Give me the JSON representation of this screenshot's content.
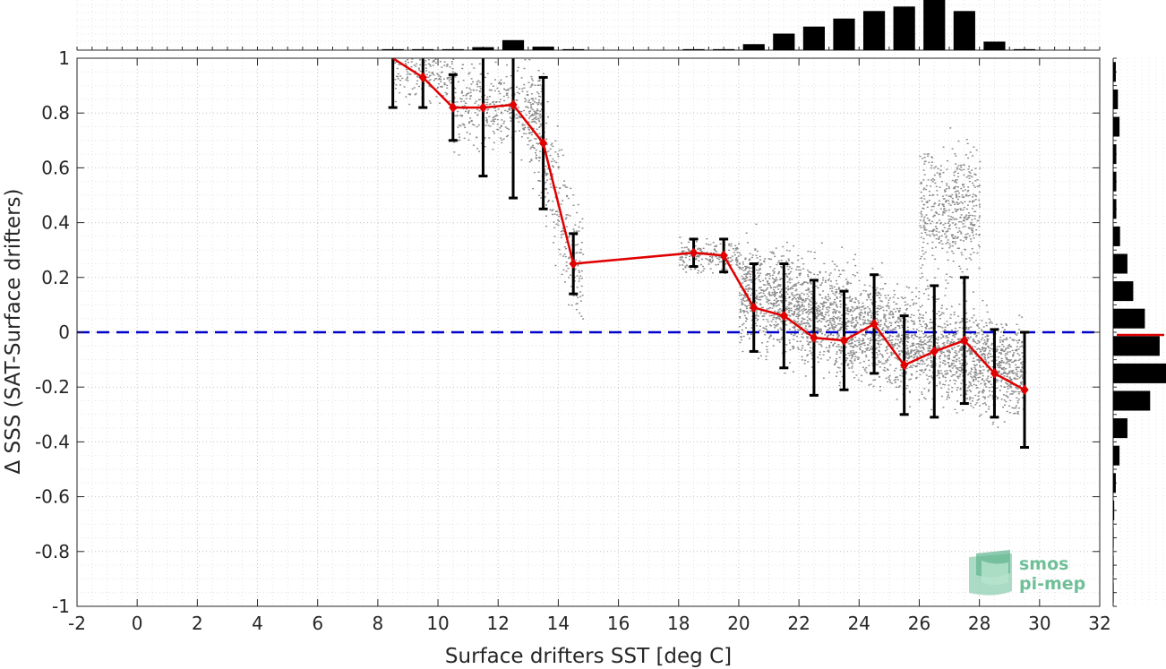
{
  "chart_data": {
    "type": "scatter",
    "title": "",
    "xlabel": "Surface drifters SST [deg C]",
    "ylabel": "Δ SSS (SAT-Surface drifters)",
    "xlim": [
      -2,
      32
    ],
    "ylim": [
      -1,
      1
    ],
    "xticks": [
      "-2",
      "0",
      "2",
      "4",
      "6",
      "8",
      "10",
      "12",
      "14",
      "16",
      "18",
      "20",
      "22",
      "24",
      "26",
      "28",
      "30",
      "32"
    ],
    "yticks": [
      "-1",
      "-0.8",
      "-0.6",
      "-0.4",
      "-0.2",
      "0",
      "0.2",
      "0.4",
      "0.6",
      "0.8",
      "1"
    ],
    "grid": "dotted major and minor",
    "reference_line": {
      "y": 0,
      "color": "#0000cc",
      "style": "dashed"
    },
    "binned_mean": {
      "color": "#e00000",
      "x": [
        8.5,
        9.5,
        10.5,
        11.5,
        12.5,
        13.5,
        14.5,
        18.5,
        19.5,
        20.5,
        21.5,
        22.5,
        23.5,
        24.5,
        25.5,
        26.5,
        27.5,
        28.5,
        29.5
      ],
      "mean": [
        1.02,
        0.93,
        0.82,
        0.82,
        0.83,
        0.69,
        0.25,
        0.29,
        0.28,
        0.09,
        0.06,
        -0.02,
        -0.03,
        0.03,
        -0.12,
        -0.07,
        -0.03,
        -0.15,
        -0.21
      ],
      "std": [
        0.2,
        0.11,
        0.12,
        0.25,
        0.34,
        0.24,
        0.11,
        0.05,
        0.06,
        0.16,
        0.19,
        0.21,
        0.18,
        0.18,
        0.18,
        0.24,
        0.23,
        0.16,
        0.21
      ]
    },
    "scatter_clusters": [
      {
        "x_range": [
          8.5,
          10.5
        ],
        "y_center": 0.95,
        "y_spread": 0.1,
        "count": 200
      },
      {
        "x_range": [
          10.5,
          13.5
        ],
        "y_center": 0.82,
        "y_spread": 0.15,
        "count": 450
      },
      {
        "x_range": [
          13.0,
          14.8
        ],
        "y_center": 0.45,
        "y_spread": 0.22,
        "count": 300
      },
      {
        "x_range": [
          18.0,
          20.0
        ],
        "y_center": 0.28,
        "y_spread": 0.06,
        "count": 200
      },
      {
        "x_range": [
          20.0,
          29.5
        ],
        "y_center": 0.0,
        "y_spread": 0.18,
        "count": 3200
      },
      {
        "x_range": [
          26.0,
          28.0
        ],
        "y_center": 0.45,
        "y_spread": 0.22,
        "count": 500
      }
    ],
    "scatter_color": "#8a8a8a",
    "top_histogram": {
      "bin_centers": [
        8.5,
        9.5,
        10.5,
        11.5,
        12.5,
        13.5,
        14.5,
        18.5,
        19.5,
        20.5,
        21.5,
        22.5,
        23.5,
        24.5,
        25.5,
        26.5,
        27.5,
        28.5,
        29.5
      ],
      "heights": [
        0.02,
        0.02,
        0.02,
        0.06,
        0.2,
        0.07,
        0.02,
        0.02,
        0.02,
        0.12,
        0.33,
        0.47,
        0.63,
        0.78,
        0.87,
        1.0,
        0.78,
        0.17,
        0.02
      ]
    },
    "right_histogram": {
      "bin_centers": [
        -0.9,
        -0.8,
        -0.7,
        -0.6,
        -0.5,
        -0.4,
        -0.3,
        -0.2,
        -0.1,
        0.0,
        0.1,
        0.2,
        0.3,
        0.4,
        0.5,
        0.6,
        0.7,
        0.8,
        0.9,
        1.0
      ],
      "heights": [
        0.01,
        0.01,
        0.01,
        0.02,
        0.05,
        0.12,
        0.27,
        0.7,
        1.0,
        0.88,
        0.6,
        0.38,
        0.27,
        0.13,
        0.06,
        0.06,
        0.06,
        0.12,
        0.09,
        0.05
      ],
      "mean_marker": {
        "y": -0.01,
        "color": "#e00000"
      }
    }
  },
  "logo": {
    "line1": "smos",
    "line2": "pi-mep"
  }
}
